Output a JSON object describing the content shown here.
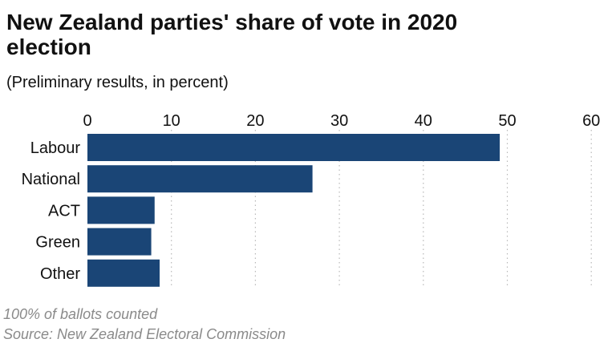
{
  "title": "New Zealand parties' share of vote in 2020 election",
  "subtitle": "(Preliminary results, in percent)",
  "note": "100% of ballots counted",
  "source": "Source: New Zealand Electoral Commission",
  "colors": {
    "bar": "#1a4576",
    "grid": "#b8b8b8"
  },
  "chart_data": {
    "type": "bar",
    "orientation": "horizontal",
    "categories": [
      "Labour",
      "National",
      "ACT",
      "Green",
      "Other"
    ],
    "values": [
      49.1,
      26.8,
      8.0,
      7.6,
      8.6
    ],
    "xlim": [
      0,
      60
    ],
    "xticks": [
      0,
      10,
      20,
      30,
      40,
      50,
      60
    ],
    "xtick_labels": [
      "0",
      "10",
      "20",
      "30",
      "40",
      "50",
      "60"
    ],
    "grid": "vertical dotted",
    "xlabel": "",
    "ylabel": ""
  }
}
